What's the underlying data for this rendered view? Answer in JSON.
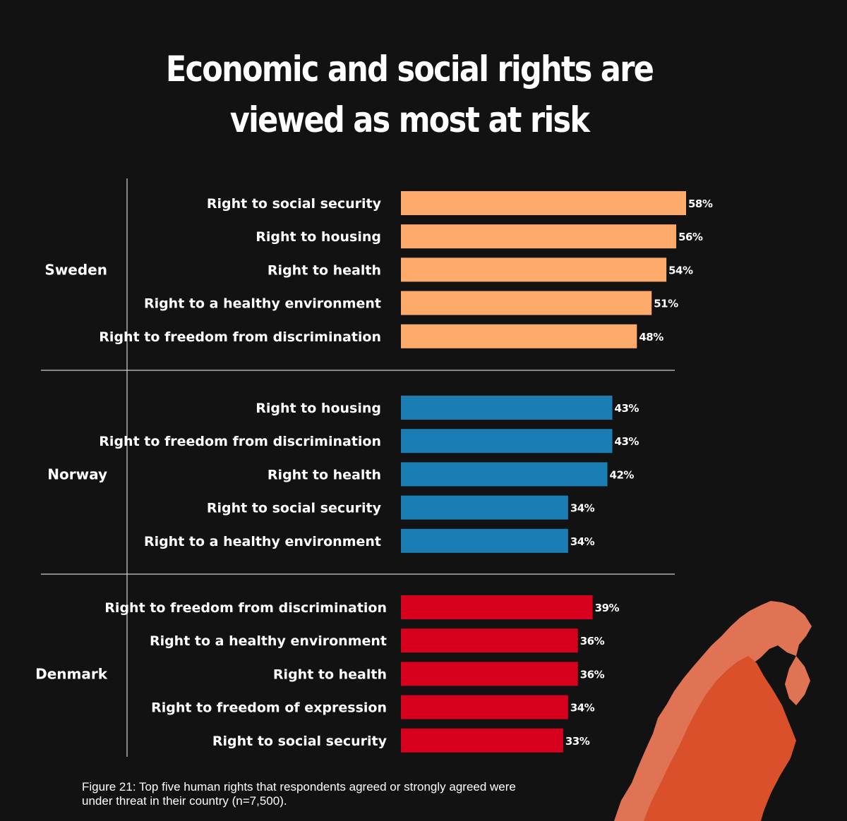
{
  "title_line1": "Economic and social rights are",
  "title_line2": "viewed as most at risk",
  "caption_line1": "Figure 21:  Top five human rights that respondents agreed or strongly agreed were",
  "caption_line2": "under threat in their country (n=7,500).",
  "colors": {
    "background": "#121212",
    "Sweden": "#fdaa6a",
    "Norway": "#1a7eb5",
    "Denmark": "#d7001d",
    "map_light": "#e07353",
    "map_dark": "#d9502a"
  },
  "chart_data": {
    "type": "bar",
    "orientation": "horizontal",
    "value_unit": "%",
    "groups": [
      {
        "name": "Sweden",
        "categories": [
          "Right to social security",
          "Right to housing",
          "Right to health",
          "Right to a healthy environment",
          "Right to freedom from discrimination"
        ],
        "values": [
          58,
          56,
          54,
          51,
          48
        ],
        "labels": [
          "58%",
          "56%",
          "54%",
          "51%",
          "48%"
        ]
      },
      {
        "name": "Norway",
        "categories": [
          "Right to housing",
          "Right to freedom from discrimination",
          "Right to health",
          "Right to social security",
          "Right to a healthy environment"
        ],
        "values": [
          43,
          43,
          42,
          34,
          34
        ],
        "labels": [
          "43%",
          "43%",
          "42%",
          "34%",
          "34%"
        ]
      },
      {
        "name": "Denmark",
        "categories": [
          "Right to freedom from discrimination",
          "Right to a healthy environment",
          "Right to health",
          "Right to freedom of expression",
          "Right to social security"
        ],
        "values": [
          39,
          36,
          36,
          34,
          33
        ],
        "labels": [
          "39%",
          "36%",
          "36%",
          "34%",
          "33%"
        ]
      }
    ]
  }
}
